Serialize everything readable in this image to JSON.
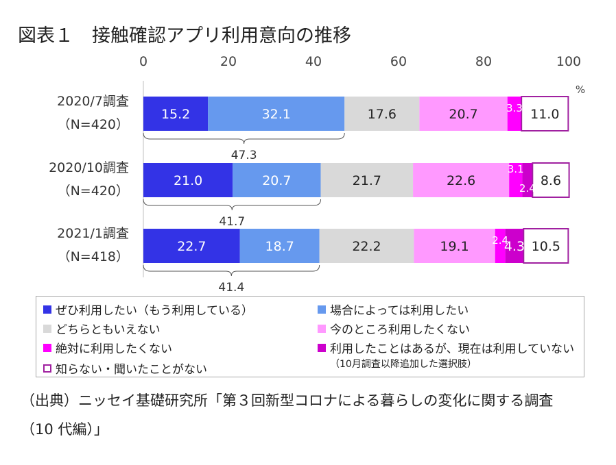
{
  "title": "図表１　接触確認アプリ利用意向の推移",
  "source_line1": "（出典）ニッセイ基礎研究所「第３回新型コロナによる暮らしの変化に関する調査",
  "source_line2": "（10 代編）」",
  "legend": {
    "items": [
      {
        "label": "ぜひ利用したい（もう利用している）",
        "color": "#3333e6",
        "outline": false
      },
      {
        "label": "場合によっては利用したい",
        "color": "#6699ee",
        "outline": false
      },
      {
        "label": "どちらともいえない",
        "color": "#d9d9d9",
        "outline": false
      },
      {
        "label": "今のところ利用したくない",
        "color": "#ff99ff",
        "outline": false
      },
      {
        "label": "絶対に利用したくない",
        "color": "#ff00ff",
        "outline": false
      },
      {
        "label": "利用したことはあるが、現在は利用していない",
        "color": "#cc00cc",
        "outline": false
      },
      {
        "label": "知らない・聞いたことがない",
        "color": "#ffffff",
        "outline": true,
        "border": "#a020a0"
      }
    ],
    "note": "（10月調査以降追加した選択肢）"
  },
  "chart_data": {
    "type": "bar",
    "orientation": "horizontal",
    "stacked": true,
    "categories": [
      "2020/7調査",
      "2020/10調査",
      "2021/1調査"
    ],
    "category_sublabels": [
      "（N=420）",
      "（N=420）",
      "（N=418）"
    ],
    "xlim": [
      0,
      100
    ],
    "x_ticks": [
      "0",
      "20",
      "40",
      "60",
      "80",
      "100"
    ],
    "unit": "%",
    "series": [
      {
        "name": "ぜひ利用したい（もう利用している）",
        "values": [
          15.2,
          21.0,
          22.7
        ],
        "labels": [
          "15.2",
          "21.0",
          "22.7"
        ],
        "color": "#3333e6",
        "text_color": "#ffffff"
      },
      {
        "name": "場合によっては利用したい",
        "values": [
          32.1,
          20.7,
          18.7
        ],
        "labels": [
          "32.1",
          "20.7",
          "18.7"
        ],
        "color": "#6699ee",
        "text_color": "#ffffff"
      },
      {
        "name": "どちらともいえない",
        "values": [
          17.6,
          21.7,
          22.2
        ],
        "labels": [
          "17.6",
          "21.7",
          "22.2"
        ],
        "color": "#d9d9d9",
        "text_color": "#222222"
      },
      {
        "name": "今のところ利用したくない",
        "values": [
          20.7,
          22.6,
          19.1
        ],
        "labels": [
          "20.7",
          "22.6",
          "19.1"
        ],
        "color": "#ff99ff",
        "text_color": "#222222"
      },
      {
        "name": "絶対に利用したくない",
        "values": [
          3.3,
          3.1,
          2.4
        ],
        "labels": [
          "3.3",
          "3.1",
          "2.4"
        ],
        "color": "#ff00ff",
        "text_color": "#ffffff"
      },
      {
        "name": "利用したことはあるが、現在は利用していない",
        "values": [
          null,
          2.4,
          4.3
        ],
        "labels": [
          "",
          "2.4",
          "4.3"
        ],
        "color": "#cc00cc",
        "text_color": "#ffffff"
      },
      {
        "name": "知らない・聞いたことがない",
        "values": [
          11.0,
          8.6,
          10.5
        ],
        "labels": [
          "11.0",
          "8.6",
          "10.5"
        ],
        "color": "#ffffff",
        "text_color": "#222222",
        "border": "#a020a0"
      }
    ],
    "bracket_totals": [
      47.3,
      41.7,
      41.4
    ],
    "bracket_labels": [
      "47.3",
      "41.7",
      "41.4"
    ]
  }
}
